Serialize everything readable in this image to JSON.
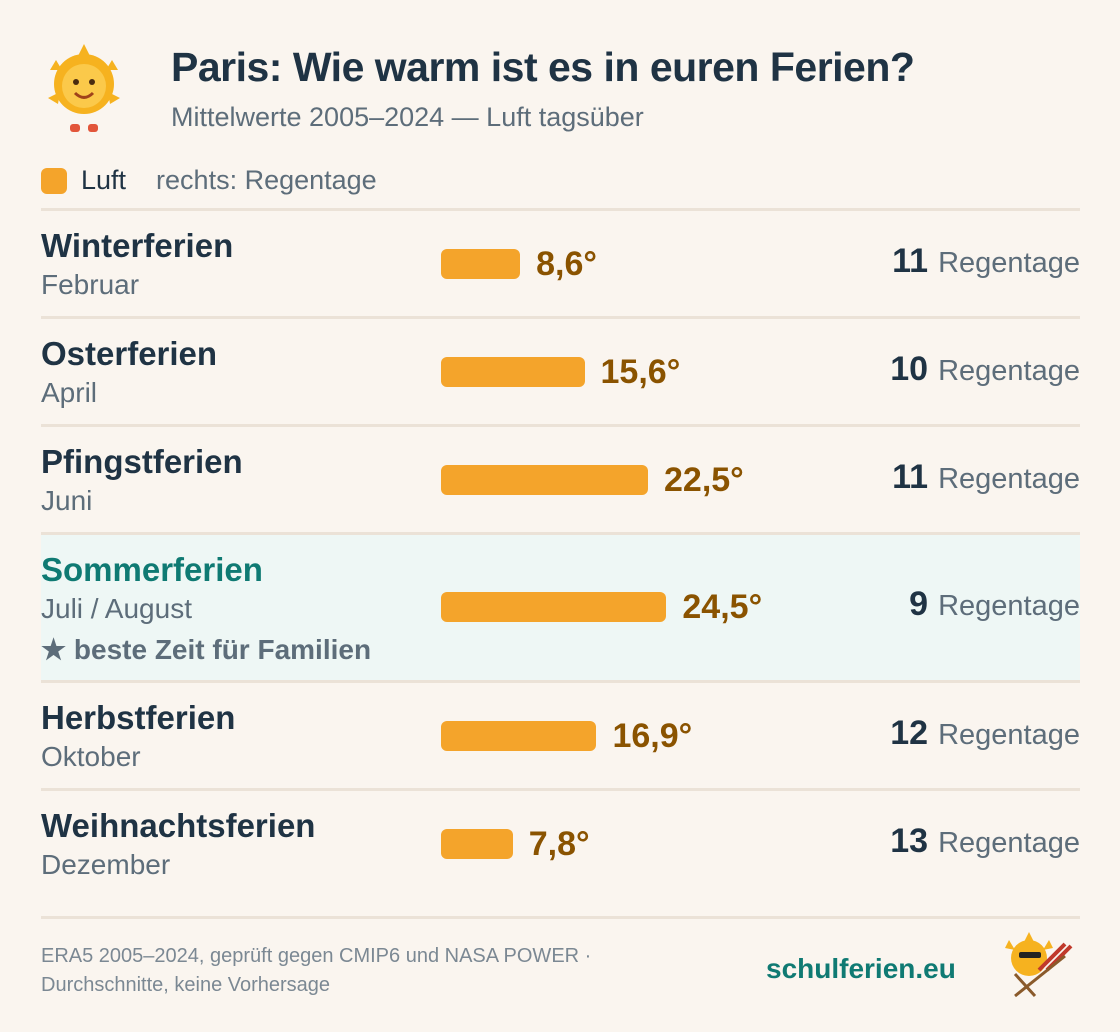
{
  "chart_data": {
    "type": "bar",
    "orientation": "horizontal",
    "title": "Paris: Wie warm ist es in euren Ferien?",
    "subtitle": "Mittelwerte 2005–2024 — Luft tagsüber",
    "legend_note": "rechts: Regentage",
    "categories": [
      "Winterferien",
      "Osterferien",
      "Pfingstferien",
      "Sommerferien",
      "Herbstferien",
      "Weihnachtsferien"
    ],
    "sublabels": [
      "Februar",
      "April",
      "Juni",
      "Juli / August",
      "Oktober",
      "Dezember"
    ],
    "series": [
      {
        "name": "Luft",
        "color": "#f4a42b",
        "values": [
          8.6,
          15.6,
          22.5,
          24.5,
          16.9,
          7.8
        ],
        "value_labels": [
          "8,6°",
          "15,6°",
          "22,5°",
          "24,5°",
          "16,9°",
          "7,8°"
        ]
      }
    ],
    "rain_days": [
      11,
      10,
      11,
      9,
      12,
      13
    ],
    "rain_unit": "Regentage",
    "highlight": {
      "index": 3,
      "note": "beste Zeit für Familien"
    },
    "xlim": [
      0,
      30
    ],
    "footer": [
      "ERA5 2005–2024, geprüft gegen CMIP6 und NASA POWER ·",
      "Durchschnitte, keine Vorhersage"
    ],
    "brand": "schulferien.eu"
  }
}
